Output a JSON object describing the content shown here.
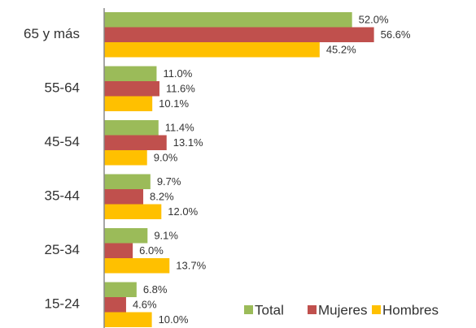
{
  "chart_data": {
    "type": "hbar",
    "categories": [
      "65  y más",
      "55-64",
      "45-54",
      "35-44",
      "25-34",
      "15-24"
    ],
    "series": [
      {
        "name": "Total",
        "color": "#9BBB59",
        "values": [
          52.0,
          11.0,
          11.4,
          9.7,
          9.1,
          6.8
        ],
        "value_labels": [
          "52.0%",
          "11.0%",
          "11.4%",
          "9.7%",
          "9.1%",
          "6.8%"
        ]
      },
      {
        "name": "Mujeres",
        "color": "#C0504D",
        "values": [
          56.6,
          11.6,
          13.1,
          8.2,
          6.0,
          4.6
        ],
        "value_labels": [
          "56.6%",
          "11.6%",
          "13.1%",
          "8.2%",
          "6.0%",
          "4.6%"
        ]
      },
      {
        "name": "Hombres",
        "color": "#FFC000",
        "values": [
          45.2,
          10.1,
          9.0,
          12.0,
          13.7,
          10.0
        ],
        "value_labels": [
          "45.2%",
          "10.1%",
          "9.0%",
          "12.0%",
          "13.7%",
          "10.0%"
        ]
      }
    ],
    "xlim": [
      0,
      78
    ],
    "legend": "bottom-right"
  }
}
